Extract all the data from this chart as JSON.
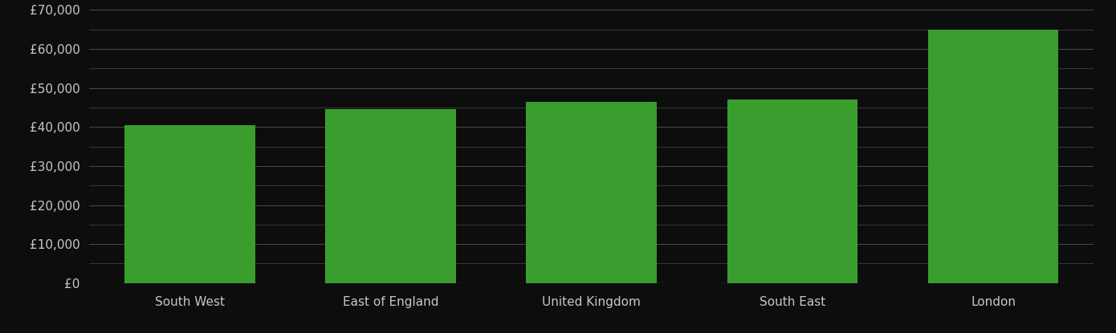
{
  "categories": [
    "South West",
    "East of England",
    "United Kingdom",
    "South East",
    "London"
  ],
  "values": [
    40500,
    44500,
    46500,
    47000,
    65000
  ],
  "bar_color": "#3a9e2f",
  "background_color": "#0d0d0d",
  "text_color": "#c8c8c8",
  "grid_color": "#4a4a4a",
  "axis_line_color": "#888888",
  "ylim": [
    0,
    70000
  ],
  "yticks_major": [
    0,
    10000,
    20000,
    30000,
    40000,
    50000,
    60000,
    70000
  ],
  "bar_width": 0.65,
  "figsize": [
    13.9,
    4.15
  ],
  "dpi": 100
}
